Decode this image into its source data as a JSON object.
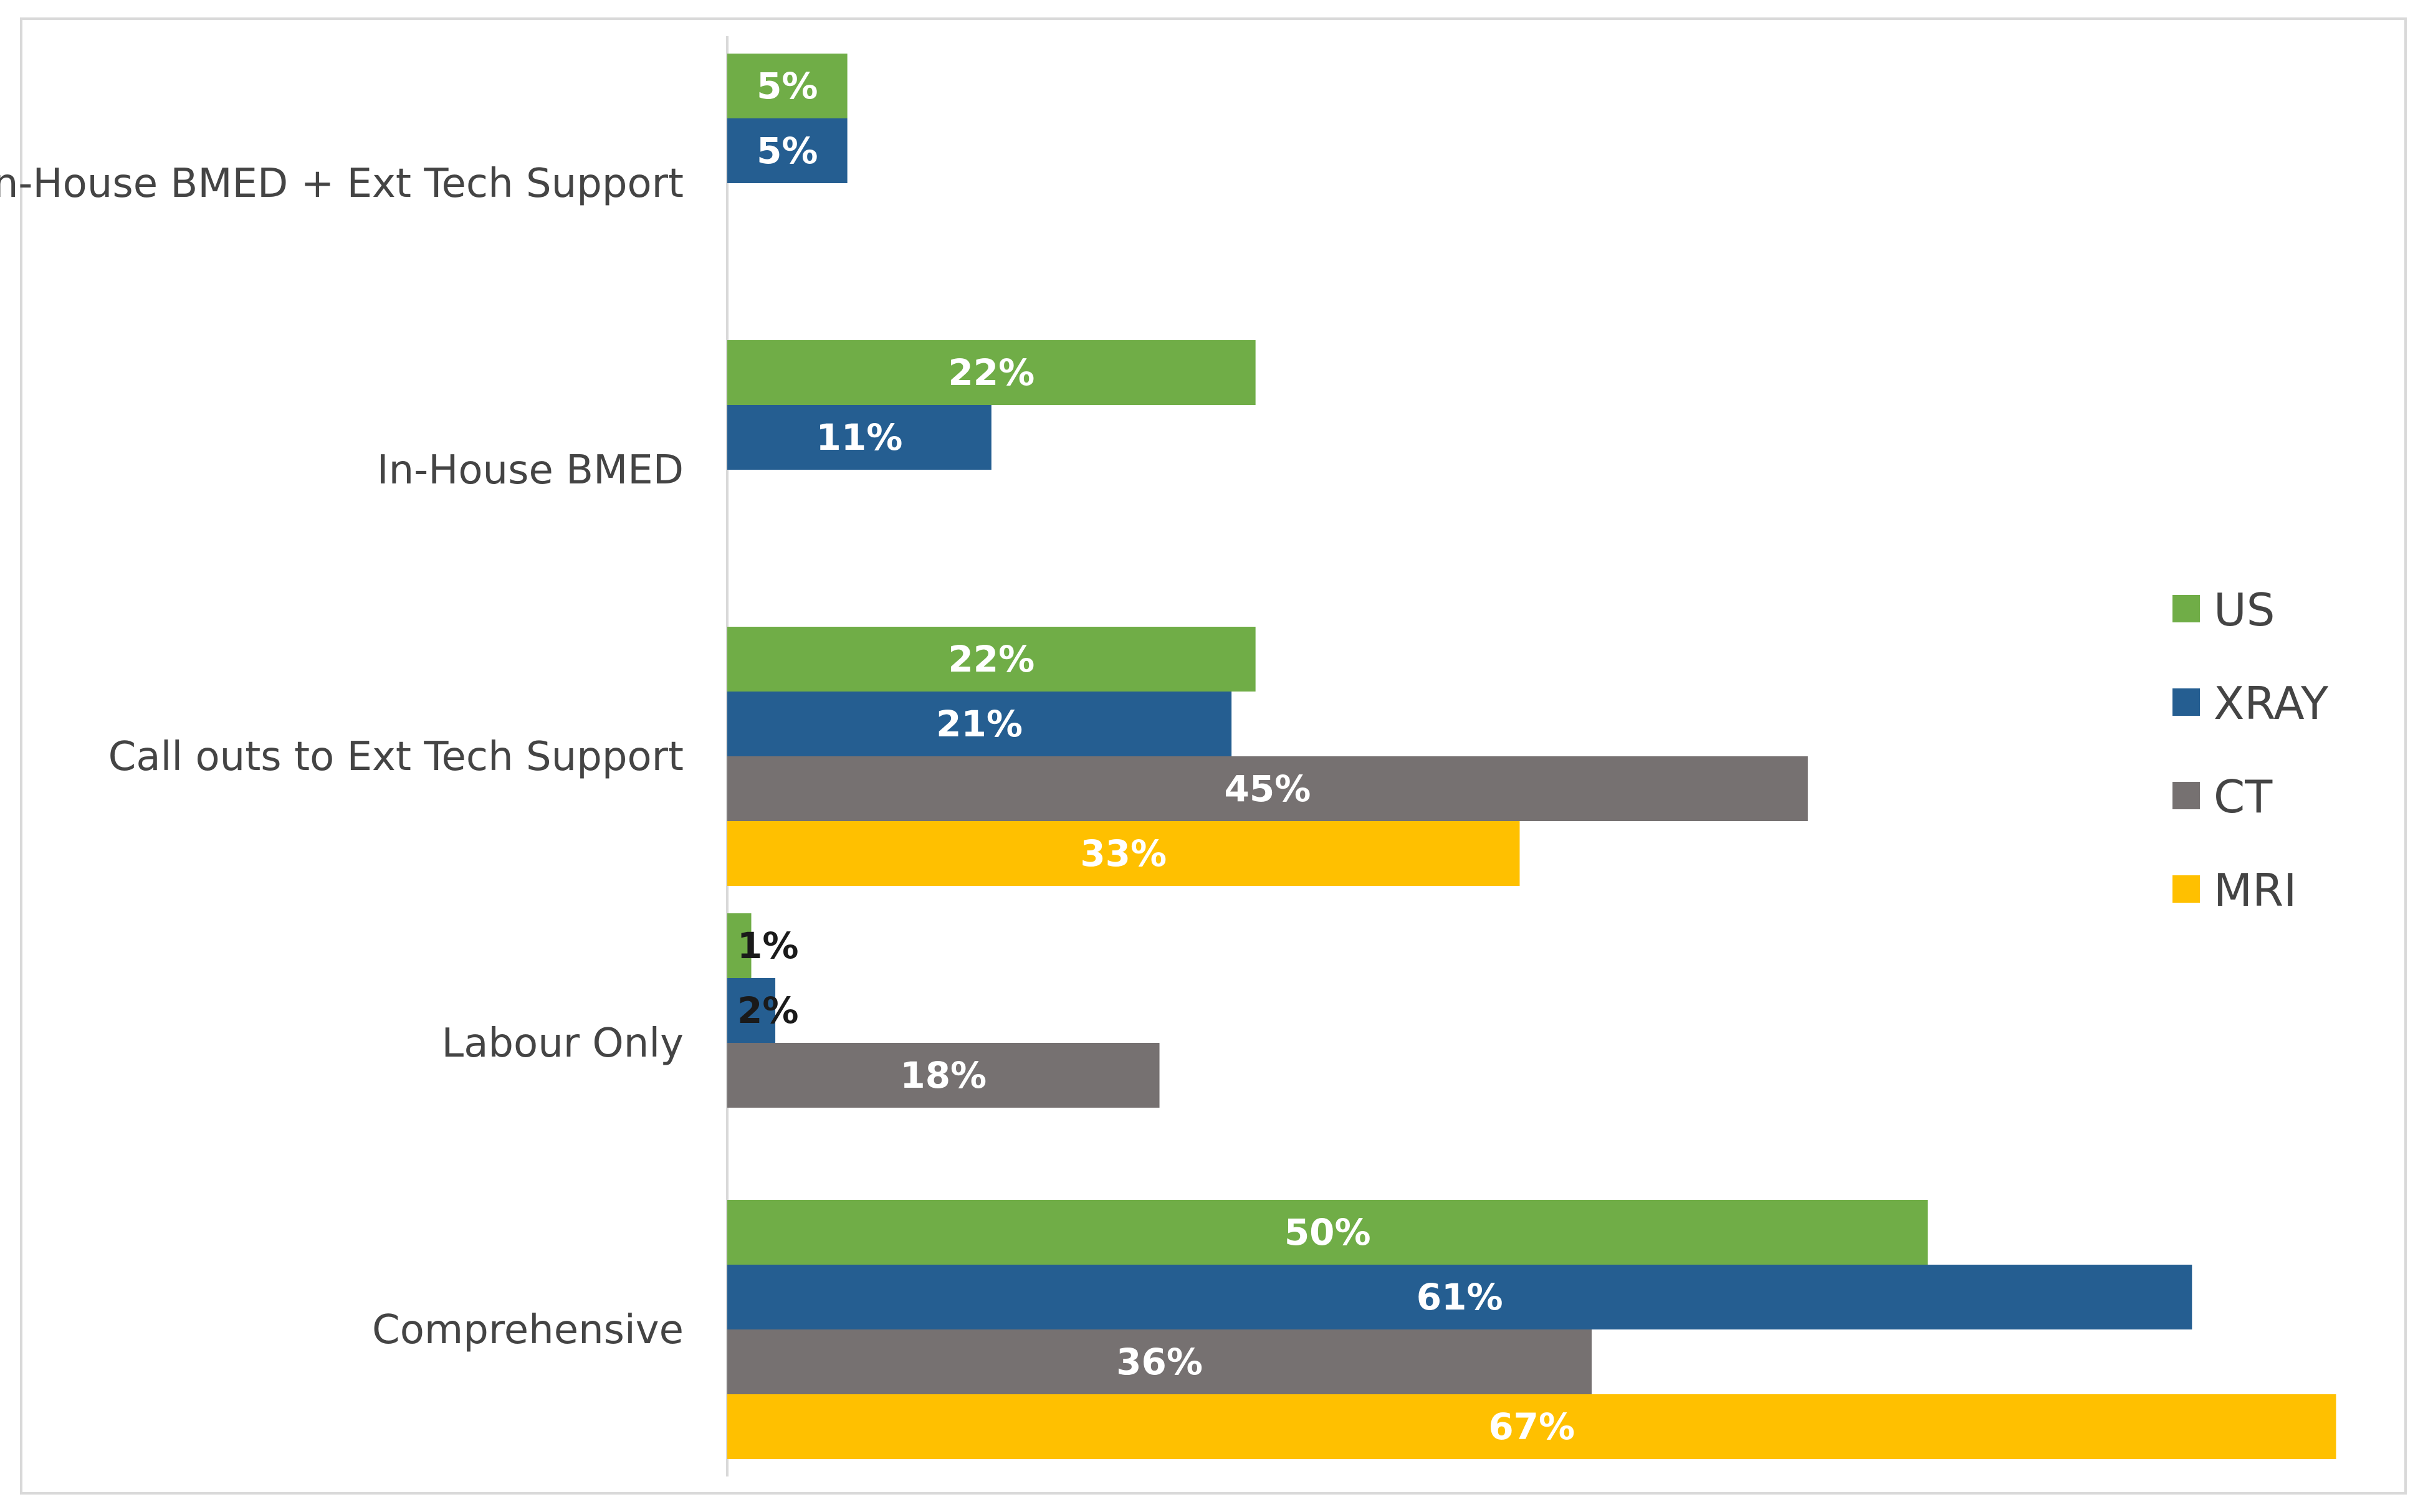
{
  "chart_data": {
    "type": "bar",
    "orientation": "horizontal",
    "categories": [
      "In-House BMED + Ext Tech Support",
      "In-House BMED",
      "Call outs to Ext Tech Support",
      "Labour Only",
      "Comprehensive"
    ],
    "series": [
      {
        "name": "US",
        "color": "#70AD47",
        "values": [
          5,
          22,
          22,
          1,
          50
        ],
        "labels": [
          "5%",
          "22%",
          "22%",
          "1%",
          "50%"
        ]
      },
      {
        "name": "XRAY",
        "color": "#255E91",
        "values": [
          5,
          11,
          21,
          2,
          61
        ],
        "labels": [
          "5%",
          "11%",
          "21%",
          "2%",
          "61%"
        ]
      },
      {
        "name": "CT",
        "color": "#767171",
        "values": [
          null,
          null,
          45,
          18,
          36
        ],
        "labels": [
          "",
          "",
          "45%",
          "18%",
          "36%"
        ]
      },
      {
        "name": "MRI",
        "color": "#FFC000",
        "values": [
          null,
          null,
          33,
          null,
          67
        ],
        "labels": [
          "",
          "",
          "33%",
          "",
          "67%"
        ]
      }
    ],
    "xlim": [
      0,
      67
    ],
    "grid": false,
    "legend_position": "right",
    "title": "",
    "xlabel": "",
    "ylabel": ""
  }
}
